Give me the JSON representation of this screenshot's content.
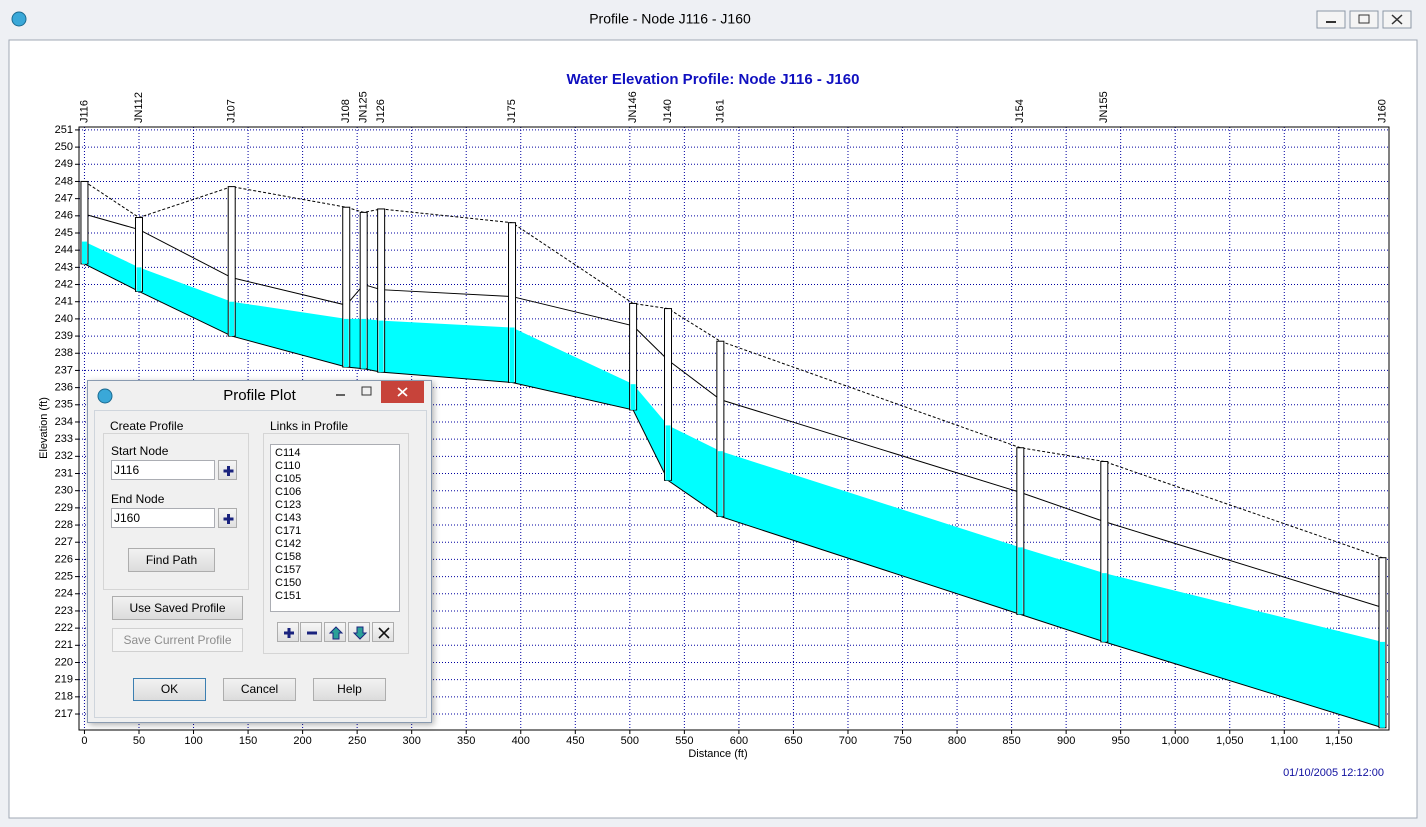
{
  "window": {
    "title": "Profile - Node J116 - J160"
  },
  "chart_data": {
    "type": "profile",
    "title": "Water Elevation Profile:  Node J116 - J160",
    "x_label": "Distance (ft)",
    "y_label": "Elevation (ft)",
    "node_labels": [
      "J116",
      "JN112",
      "J107",
      "J108",
      "JN125",
      "J126",
      "J175",
      "JN146",
      "J140",
      "J161",
      "J154",
      "JN155",
      "J160"
    ],
    "x": [
      0,
      50,
      135,
      240,
      256,
      272,
      392,
      503,
      535,
      583,
      858,
      935,
      1190
    ],
    "invert": [
      243.2,
      241.6,
      239.0,
      237.2,
      237.1,
      236.9,
      236.3,
      234.7,
      230.6,
      228.5,
      222.8,
      221.2,
      216.2
    ],
    "water": [
      244.5,
      243.0,
      241.0,
      240.0,
      240.0,
      239.9,
      239.5,
      236.2,
      233.8,
      232.3,
      226.7,
      225.2,
      221.2
    ],
    "crown": [
      246.1,
      245.2,
      242.4,
      240.8,
      242.0,
      241.7,
      241.3,
      239.6,
      237.6,
      235.3,
      229.9,
      228.2,
      223.2
    ],
    "ground": [
      248.0,
      245.9,
      247.7,
      246.5,
      246.2,
      246.4,
      245.6,
      240.9,
      240.6,
      238.7,
      232.5,
      231.7,
      226.1
    ],
    "water_color": "#00ffff",
    "grid": true,
    "grid_color": "#0000a0",
    "xlim": [
      -5,
      1196
    ],
    "xticks": [
      0,
      50,
      100,
      150,
      200,
      250,
      300,
      350,
      400,
      450,
      500,
      550,
      600,
      650,
      700,
      750,
      800,
      850,
      900,
      950,
      {
        "value": 1000,
        "label": "1,000"
      },
      {
        "value": 1050,
        "label": "1,050"
      },
      {
        "value": 1100,
        "label": "1,100"
      },
      {
        "value": 1150,
        "label": "1,150"
      }
    ],
    "ylim": [
      216.07,
      251.17
    ],
    "yticks": [
      217,
      218,
      219,
      220,
      221,
      222,
      223,
      224,
      225,
      226,
      227,
      228,
      229,
      230,
      231,
      232,
      233,
      234,
      235,
      236,
      237,
      238,
      239,
      240,
      241,
      242,
      243,
      244,
      245,
      246,
      247,
      248,
      249,
      250,
      251
    ],
    "date_stamp": "01/10/2005 12:12:00"
  },
  "dialog": {
    "title": "Profile Plot",
    "create_group": "Create Profile",
    "start_label": "Start Node",
    "start_value": "J116",
    "end_label": "End Node",
    "end_value": "J160",
    "find_path": "Find Path",
    "use_saved": "Use Saved Profile",
    "save_current": "Save Current Profile",
    "links_group": "Links in Profile",
    "links": [
      "C114",
      "C110",
      "C105",
      "C106",
      "C123",
      "C143",
      "C171",
      "C142",
      "C158",
      "C157",
      "C150",
      "C151"
    ],
    "ok": "OK",
    "cancel": "Cancel",
    "help": "Help"
  }
}
